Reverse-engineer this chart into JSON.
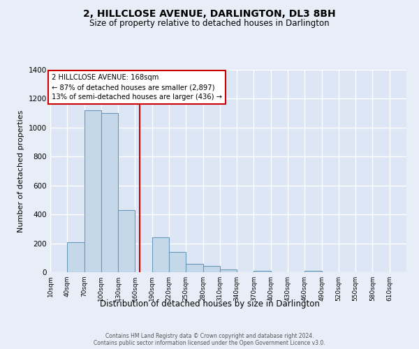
{
  "title": "2, HILLCLOSE AVENUE, DARLINGTON, DL3 8BH",
  "subtitle": "Size of property relative to detached houses in Darlington",
  "xlabel": "Distribution of detached houses by size in Darlington",
  "ylabel": "Number of detached properties",
  "bar_color": "#c5d8ea",
  "bar_edge_color": "#6899bb",
  "background_color": "#e8eef8",
  "plot_bg_color": "#dde6f5",
  "grid_color": "#ffffff",
  "property_line_x": 168,
  "property_line_color": "#cc0000",
  "annotation_line1": "2 HILLCLOSE AVENUE: 168sqm",
  "annotation_line2": "← 87% of detached houses are smaller (2,897)",
  "annotation_line3": "13% of semi-detached houses are larger (436) →",
  "annotation_box_color": "#ffffff",
  "annotation_box_edge": "#cc0000",
  "bins_left": [
    10,
    40,
    70,
    100,
    130,
    160,
    190,
    220,
    250,
    280,
    310,
    340,
    370,
    400,
    430,
    460,
    490,
    520,
    550,
    580
  ],
  "bin_width": 30,
  "bar_heights": [
    0,
    210,
    1120,
    1100,
    430,
    0,
    240,
    140,
    60,
    45,
    20,
    0,
    10,
    0,
    0,
    10,
    0,
    0,
    0,
    0
  ],
  "ylim": [
    0,
    1400
  ],
  "yticks": [
    0,
    200,
    400,
    600,
    800,
    1000,
    1200,
    1400
  ],
  "xtick_labels": [
    "10sqm",
    "40sqm",
    "70sqm",
    "100sqm",
    "130sqm",
    "160sqm",
    "190sqm",
    "220sqm",
    "250sqm",
    "280sqm",
    "310sqm",
    "340sqm",
    "370sqm",
    "400sqm",
    "430sqm",
    "460sqm",
    "490sqm",
    "520sqm",
    "550sqm",
    "580sqm",
    "610sqm"
  ],
  "footer_line1": "Contains HM Land Registry data © Crown copyright and database right 2024.",
  "footer_line2": "Contains public sector information licensed under the Open Government Licence v3.0."
}
